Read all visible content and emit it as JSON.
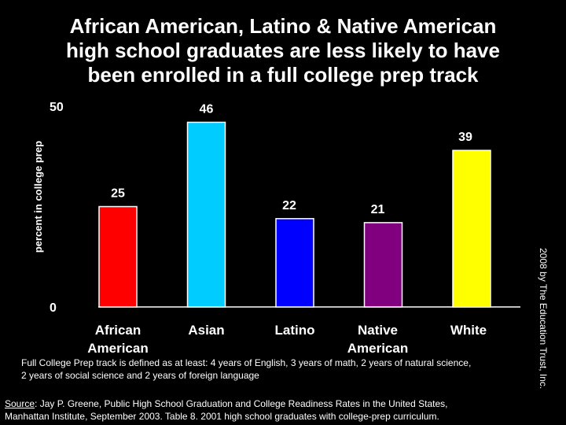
{
  "title_lines": [
    "African American, Latino & Native American",
    "high school graduates are less likely to have",
    "been enrolled in a full college prep track"
  ],
  "chart_data": {
    "type": "bar",
    "ylabel": "percent in college prep",
    "ylim": [
      0,
      50
    ],
    "yticks": [
      "0",
      "50"
    ],
    "categories": [
      [
        "African",
        "American"
      ],
      [
        "Asian"
      ],
      [
        "Latino"
      ],
      [
        "Native",
        "American"
      ],
      [
        "White"
      ]
    ],
    "values": [
      25,
      46,
      22,
      21,
      39
    ],
    "colors": [
      "#ff0000",
      "#00ccff",
      "#0000ff",
      "#800080",
      "#ffff00"
    ]
  },
  "note_lines": [
    "Full College Prep track is defined as at least: 4 years of English, 3 years of math, 2 years of natural science,",
    "2 years of social science and 2 years of foreign language"
  ],
  "source": {
    "label": "Source",
    "line1": ": Jay P. Greene, Public High School Graduation  and College Readiness Rates in the United States,",
    "line2": "Manhattan Institute, September 2003. Table 8. 2001 high school graduates with college-prep curriculum."
  },
  "credit": "2008 by The Education Trust, Inc."
}
